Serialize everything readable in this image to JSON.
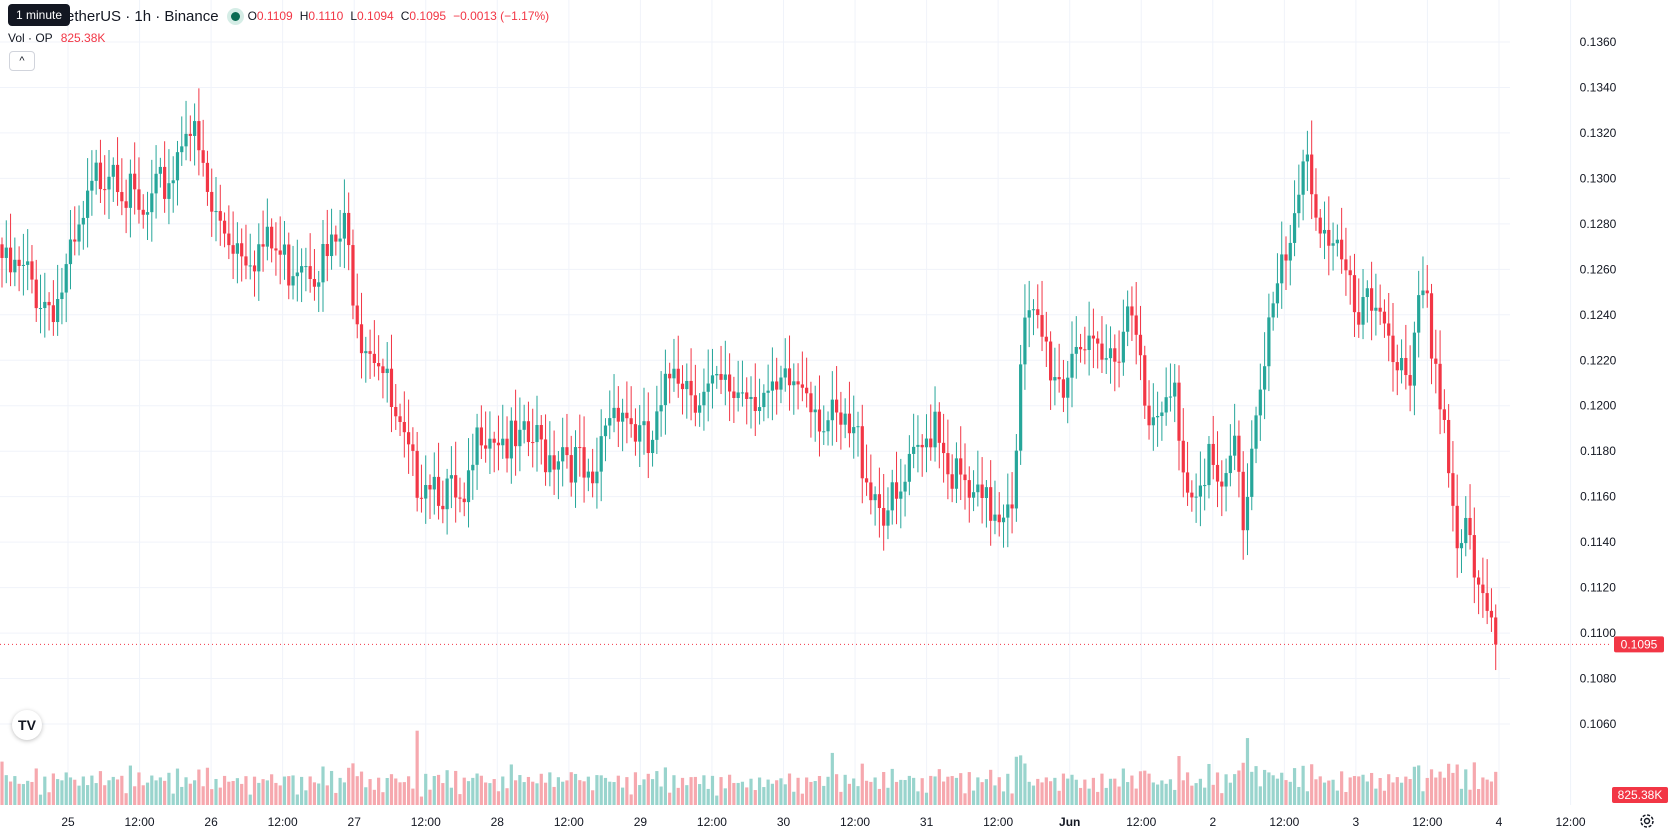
{
  "legend": {
    "symbol": "etherUS · 1h · Binance",
    "tooltip": "1 minute",
    "o_label": "O",
    "o_value": "0.1109",
    "h_label": "H",
    "h_value": "0.1110",
    "l_label": "L",
    "l_value": "0.1094",
    "c_label": "C",
    "c_value": "0.1095",
    "change": "−0.0013 (−1.17%)",
    "vol_label": "Vol · OP",
    "vol_value": "825.38K",
    "collapse_glyph": "^"
  },
  "colors": {
    "up": "#26a69a",
    "down": "#f23645",
    "up_volume": "#99d4cd",
    "down_volume": "#f6a8ae",
    "price_line": "#f23645",
    "grid": "#f0f3fa"
  },
  "icons": [
    "tradingview-logo-icon",
    "settings-icon",
    "collapse-chevron-icon"
  ],
  "price_label": "0.1095",
  "volume_label": "825.38K",
  "chart_data": {
    "type": "candlestick",
    "interval": "1h",
    "y_ticks": [
      "0.1060",
      "0.1080",
      "0.1100",
      "0.1120",
      "0.1140",
      "0.1160",
      "0.1180",
      "0.1200",
      "0.1220",
      "0.1240",
      "0.1260",
      "0.1280",
      "0.1300",
      "0.1320",
      "0.1340",
      "0.1360"
    ],
    "ylim": [
      0.1048,
      0.1366
    ],
    "x_ticks": [
      "25",
      "12:00",
      "26",
      "12:00",
      "27",
      "12:00",
      "28",
      "12:00",
      "29",
      "12:00",
      "30",
      "12:00",
      "31",
      "12:00",
      "Jun",
      "12:00",
      "2",
      "12:00",
      "3",
      "12:00",
      "4",
      "12:00"
    ],
    "current_price": 0.1095,
    "volume_last": "825.38K",
    "grid": true,
    "price_knots": [
      [
        0,
        0.1265
      ],
      [
        6,
        0.1262
      ],
      [
        10,
        0.1252
      ],
      [
        13,
        0.1253
      ],
      [
        18,
        0.1278
      ],
      [
        22,
        0.1305
      ],
      [
        26,
        0.1318
      ],
      [
        29,
        0.13
      ],
      [
        33,
        0.1285
      ],
      [
        37,
        0.13
      ],
      [
        40,
        0.131
      ],
      [
        43,
        0.1335
      ],
      [
        46,
        0.1315
      ],
      [
        49,
        0.129
      ],
      [
        54,
        0.128
      ],
      [
        59,
        0.1275
      ],
      [
        63,
        0.1275
      ],
      [
        67,
        0.1268
      ],
      [
        70,
        0.1275
      ],
      [
        73,
        0.127
      ],
      [
        76,
        0.127
      ],
      [
        80,
        0.1282
      ],
      [
        84,
        0.124
      ],
      [
        88,
        0.123
      ],
      [
        92,
        0.1195
      ],
      [
        96,
        0.1175
      ],
      [
        100,
        0.1178
      ],
      [
        104,
        0.1168
      ],
      [
        108,
        0.1155
      ],
      [
        112,
        0.12
      ],
      [
        116,
        0.1195
      ],
      [
        120,
        0.1185
      ],
      [
        124,
        0.119
      ],
      [
        128,
        0.1185
      ],
      [
        131,
        0.119
      ],
      [
        135,
        0.1178
      ],
      [
        138,
        0.1162
      ],
      [
        141,
        0.12
      ],
      [
        144,
        0.121
      ],
      [
        148,
        0.1195
      ],
      [
        151,
        0.1185
      ],
      [
        154,
        0.12
      ],
      [
        157,
        0.1228
      ],
      [
        160,
        0.1218
      ],
      [
        164,
        0.121
      ],
      [
        170,
        0.1212
      ],
      [
        174,
        0.1215
      ],
      [
        178,
        0.1212
      ],
      [
        180,
        0.1205
      ],
      [
        184,
        0.1215
      ],
      [
        188,
        0.1218
      ],
      [
        192,
        0.12
      ],
      [
        196,
        0.1194
      ],
      [
        200,
        0.119
      ],
      [
        203,
        0.1172
      ],
      [
        206,
        0.1162
      ],
      [
        209,
        0.116
      ],
      [
        212,
        0.1175
      ],
      [
        215,
        0.1185
      ],
      [
        218,
        0.1205
      ],
      [
        221,
        0.1182
      ],
      [
        224,
        0.117
      ],
      [
        227,
        0.1162
      ],
      [
        230,
        0.116
      ],
      [
        233,
        0.1162
      ],
      [
        236,
        0.117
      ],
      [
        239,
        0.124
      ],
      [
        242,
        0.124
      ],
      [
        245,
        0.1225
      ],
      [
        248,
        0.1215
      ],
      [
        251,
        0.124
      ],
      [
        254,
        0.1225
      ],
      [
        257,
        0.1222
      ],
      [
        260,
        0.123
      ],
      [
        263,
        0.125
      ],
      [
        266,
        0.124
      ],
      [
        268,
        0.119
      ],
      [
        271,
        0.12
      ],
      [
        274,
        0.121
      ],
      [
        277,
        0.117
      ],
      [
        279,
        0.1175
      ],
      [
        282,
        0.1185
      ],
      [
        285,
        0.116
      ],
      [
        288,
        0.119
      ],
      [
        290,
        0.1155
      ],
      [
        293,
        0.1205
      ],
      [
        296,
        0.1245
      ],
      [
        299,
        0.1262
      ],
      [
        302,
        0.128
      ],
      [
        305,
        0.132
      ],
      [
        308,
        0.1285
      ],
      [
        311,
        0.1282
      ],
      [
        314,
        0.1258
      ],
      [
        317,
        0.124
      ],
      [
        320,
        0.125
      ],
      [
        323,
        0.125
      ],
      [
        326,
        0.1225
      ],
      [
        329,
        0.1205
      ],
      [
        331,
        0.125
      ],
      [
        333,
        0.1245
      ],
      [
        335,
        0.1225
      ],
      [
        337,
        0.12
      ],
      [
        340,
        0.1145
      ],
      [
        342,
        0.1153
      ],
      [
        344,
        0.1125
      ],
      [
        346,
        0.1117
      ],
      [
        348,
        0.111
      ],
      [
        349,
        0.1095
      ]
    ],
    "volume_note": "Volume histogram along the bottom of the plot, green for up candles, red for down candles"
  }
}
